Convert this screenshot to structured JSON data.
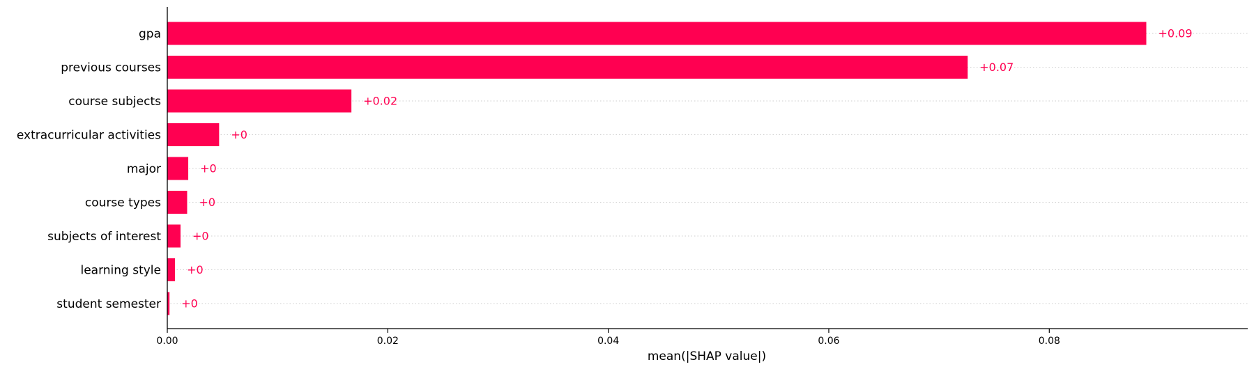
{
  "chart_data": {
    "type": "bar",
    "orientation": "horizontal",
    "categories": [
      "gpa",
      "previous courses",
      "course subjects",
      "extracurricular activities",
      "major",
      "course types",
      "subjects of interest",
      "learning style",
      "student semester"
    ],
    "values": [
      0.0888,
      0.0726,
      0.0167,
      0.0047,
      0.0019,
      0.0018,
      0.0012,
      0.0007,
      0.0002
    ],
    "value_labels": [
      "+0.09",
      "+0.07",
      "+0.02",
      "+0",
      "+0",
      "+0",
      "+0",
      "+0",
      "+0"
    ],
    "xlabel": "mean(|SHAP value|)",
    "ylabel": "",
    "xlim": [
      0,
      0.098
    ],
    "x_ticks": [
      0.0,
      0.02,
      0.04,
      0.06,
      0.08
    ],
    "x_tick_labels": [
      "0.00",
      "0.02",
      "0.04",
      "0.06",
      "0.08"
    ],
    "grid": "horizontal dotted",
    "bar_color": "#ff0051"
  }
}
